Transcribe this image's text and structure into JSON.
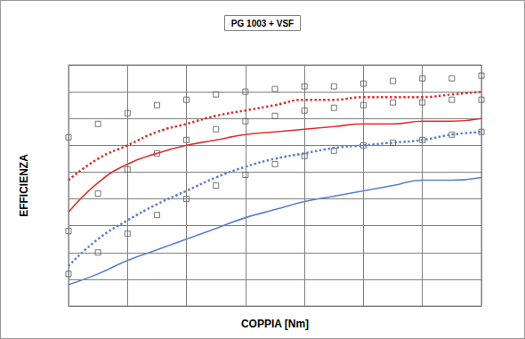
{
  "chart_data": {
    "type": "line",
    "title": "PG 1003 + VSF",
    "x_label": "COPPIA [Nm]",
    "y_label": "EFFICIENZA",
    "x": [
      0,
      0.5,
      1,
      1.5,
      2,
      2.5,
      3,
      3.5,
      4,
      4.5,
      5,
      5.5,
      6,
      6.5,
      7
    ],
    "series": [
      {
        "type": "scatter",
        "marker": "square",
        "color": "#555555",
        "values": [
          6.3,
          6.8,
          7.2,
          7.5,
          7.7,
          7.9,
          8.0,
          8.1,
          8.2,
          8.2,
          8.3,
          8.4,
          8.5,
          8.5,
          8.6
        ]
      },
      {
        "type": "scatter",
        "marker": "square",
        "color": "#555555",
        "values": [
          2.8,
          4.2,
          5.1,
          5.7,
          6.2,
          6.6,
          6.9,
          7.1,
          7.3,
          7.4,
          7.5,
          7.6,
          7.6,
          7.7,
          7.7
        ]
      },
      {
        "type": "scatter",
        "marker": "square",
        "color": "#555555",
        "values": [
          1.2,
          2.0,
          2.7,
          3.4,
          4.0,
          4.5,
          4.9,
          5.3,
          5.6,
          5.8,
          6.0,
          6.1,
          6.2,
          6.4,
          6.5
        ]
      },
      {
        "type": "line",
        "line_style": "solid",
        "color": "#e03030",
        "values": [
          3.5,
          4.6,
          5.3,
          5.7,
          6.0,
          6.2,
          6.4,
          6.5,
          6.6,
          6.7,
          6.8,
          6.8,
          6.9,
          6.9,
          7.0
        ]
      },
      {
        "type": "line",
        "line_style": "dotted",
        "color": "#e03030",
        "values": [
          4.7,
          5.5,
          6.0,
          6.5,
          6.8,
          7.1,
          7.3,
          7.5,
          7.7,
          7.7,
          7.8,
          7.8,
          7.8,
          7.9,
          8.0
        ]
      },
      {
        "type": "line",
        "line_style": "solid",
        "color": "#5a7fd0",
        "values": [
          0.8,
          1.2,
          1.7,
          2.1,
          2.5,
          2.9,
          3.3,
          3.6,
          3.9,
          4.1,
          4.3,
          4.5,
          4.7,
          4.7,
          4.8
        ]
      },
      {
        "type": "line",
        "line_style": "dotted",
        "color": "#5a7fd0",
        "values": [
          1.5,
          2.5,
          3.2,
          3.8,
          4.3,
          4.8,
          5.2,
          5.5,
          5.7,
          5.9,
          6.0,
          6.1,
          6.2,
          6.4,
          6.5
        ]
      }
    ],
    "xlim": [
      0,
      7
    ],
    "xticks": [
      0,
      1,
      2,
      3,
      4,
      5,
      6,
      7
    ],
    "ylim": [
      0,
      9
    ],
    "yticks": [
      0,
      1,
      2,
      3,
      4,
      5,
      6,
      7,
      8,
      9
    ],
    "grid": true,
    "tick_labels": false
  }
}
